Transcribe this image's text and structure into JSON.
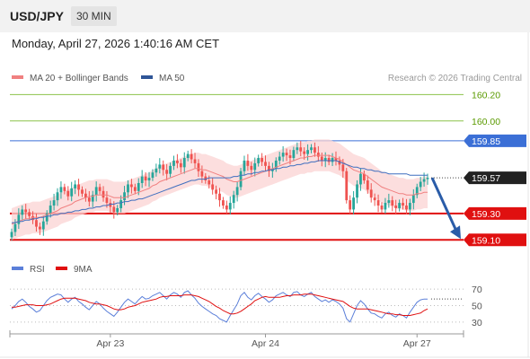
{
  "header": {
    "symbol": "USD/JPY",
    "timeframe": "30 MIN"
  },
  "datetime": "Monday, April 27, 2026 1:40:16 AM CET",
  "attribution": "Research © 2026 Trading Central",
  "colors": {
    "up": "#26a69a",
    "down": "#ef5350",
    "ma20": "#f08080",
    "band": "#fbd3d3",
    "ma50": "#3f6fbf",
    "resistance": "#3b6fd6",
    "support": "#e01010",
    "target_green": "#8bc34a",
    "arrow": "#2a5ca8",
    "rsi": "#5b7fd9",
    "rsi_ma": "#e01010"
  },
  "chart_data": [
    {
      "type": "candlestick",
      "legend": [
        {
          "name": "MA 20 + Bollinger Bands",
          "color": "#f08080"
        },
        {
          "name": "MA 50",
          "color": "#2f5597"
        }
      ],
      "legend_position": "top-left",
      "ylim": [
        159.0,
        160.25
      ],
      "x_ticks": [
        {
          "label": "Apr 23",
          "index": 28
        },
        {
          "label": "Apr 24",
          "index": 72
        },
        {
          "label": "Apr 27",
          "index": 115
        }
      ],
      "levels": [
        {
          "label": "160.20",
          "value": 160.2,
          "style": "green-line"
        },
        {
          "label": "160.00",
          "value": 160.0,
          "style": "green-line"
        },
        {
          "label": "159.85",
          "value": 159.85,
          "style": "blue-line"
        },
        {
          "label": "159.30",
          "value": 159.3,
          "style": "red-line"
        },
        {
          "label": "159.10",
          "value": 159.1,
          "style": "red-line"
        }
      ],
      "last_price": {
        "label": "159.57",
        "value": 159.57
      },
      "forecast_arrow": {
        "from": 159.57,
        "to": 159.1
      },
      "closes": [
        159.16,
        159.22,
        159.29,
        159.33,
        159.31,
        159.28,
        159.25,
        159.2,
        159.18,
        159.24,
        159.3,
        159.36,
        159.4,
        159.46,
        159.5,
        159.47,
        159.43,
        159.49,
        159.52,
        159.48,
        159.45,
        159.42,
        159.39,
        159.44,
        159.5,
        159.47,
        159.42,
        159.38,
        159.35,
        159.31,
        159.34,
        159.4,
        159.46,
        159.52,
        159.5,
        159.47,
        159.53,
        159.58,
        159.55,
        159.57,
        159.61,
        159.64,
        159.67,
        159.63,
        159.6,
        159.66,
        159.7,
        159.68,
        159.65,
        159.72,
        159.75,
        159.71,
        159.68,
        159.62,
        159.58,
        159.55,
        159.52,
        159.48,
        159.45,
        159.4,
        159.36,
        159.33,
        159.38,
        159.44,
        159.5,
        159.62,
        159.7,
        159.66,
        159.63,
        159.68,
        159.72,
        159.69,
        159.66,
        159.62,
        159.64,
        159.7,
        159.73,
        159.76,
        159.74,
        159.72,
        159.78,
        159.8,
        159.77,
        159.75,
        159.78,
        159.8,
        159.76,
        159.73,
        159.7,
        159.72,
        159.69,
        159.72,
        159.7,
        159.67,
        159.62,
        159.4,
        159.33,
        159.42,
        159.52,
        159.6,
        159.55,
        159.48,
        159.42,
        159.4,
        159.36,
        159.33,
        159.38,
        159.4,
        159.36,
        159.34,
        159.38,
        159.36,
        159.33,
        159.38,
        159.44,
        159.5,
        159.54,
        159.56,
        159.57
      ],
      "ma20": [
        159.22,
        159.23,
        159.24,
        159.25,
        159.26,
        159.26,
        159.27,
        159.27,
        159.27,
        159.28,
        159.29,
        159.3,
        159.31,
        159.32,
        159.34,
        159.35,
        159.36,
        159.37,
        159.39,
        159.4,
        159.41,
        159.42,
        159.43,
        159.43,
        159.44,
        159.44,
        159.44,
        159.44,
        159.43,
        159.42,
        159.42,
        159.42,
        159.42,
        159.43,
        159.44,
        159.45,
        159.46,
        159.47,
        159.48,
        159.49,
        159.51,
        159.52,
        159.54,
        159.55,
        159.56,
        159.57,
        159.58,
        159.59,
        159.6,
        159.61,
        159.62,
        159.63,
        159.64,
        159.64,
        159.63,
        159.63,
        159.62,
        159.61,
        159.6,
        159.59,
        159.58,
        159.56,
        159.55,
        159.54,
        159.54,
        159.55,
        159.56,
        159.57,
        159.58,
        159.59,
        159.6,
        159.61,
        159.62,
        159.63,
        159.64,
        159.65,
        159.66,
        159.67,
        159.68,
        159.69,
        159.7,
        159.71,
        159.72,
        159.72,
        159.73,
        159.73,
        159.74,
        159.74,
        159.74,
        159.74,
        159.74,
        159.73,
        159.72,
        159.71,
        159.69,
        159.67,
        159.65,
        159.63,
        159.62,
        159.61,
        159.6,
        159.58,
        159.56,
        159.54,
        159.52,
        159.5,
        159.49,
        159.48,
        159.47,
        159.46,
        159.45,
        159.45,
        159.44,
        159.44,
        159.44,
        159.45,
        159.45,
        159.46,
        159.46
      ],
      "ma50": [
        159.23,
        159.23,
        159.24,
        159.24,
        159.25,
        159.25,
        159.26,
        159.26,
        159.27,
        159.27,
        159.28,
        159.28,
        159.29,
        159.29,
        159.3,
        159.3,
        159.31,
        159.31,
        159.32,
        159.32,
        159.33,
        159.33,
        159.34,
        159.34,
        159.35,
        159.35,
        159.36,
        159.36,
        159.37,
        159.37,
        159.38,
        159.38,
        159.39,
        159.39,
        159.4,
        159.4,
        159.41,
        159.41,
        159.42,
        159.43,
        159.44,
        159.45,
        159.46,
        159.47,
        159.48,
        159.49,
        159.5,
        159.51,
        159.52,
        159.53,
        159.54,
        159.55,
        159.55,
        159.56,
        159.56,
        159.56,
        159.57,
        159.57,
        159.57,
        159.57,
        159.57,
        159.57,
        159.57,
        159.58,
        159.58,
        159.59,
        159.59,
        159.6,
        159.6,
        159.61,
        159.61,
        159.62,
        159.62,
        159.63,
        159.63,
        159.64,
        159.64,
        159.65,
        159.65,
        159.66,
        159.66,
        159.67,
        159.67,
        159.68,
        159.68,
        159.69,
        159.69,
        159.7,
        159.7,
        159.7,
        159.7,
        159.7,
        159.7,
        159.69,
        159.68,
        159.67,
        159.66,
        159.65,
        159.65,
        159.64,
        159.64,
        159.63,
        159.63,
        159.62,
        159.62,
        159.61,
        159.61,
        159.6,
        159.6,
        159.6,
        159.6,
        159.6,
        159.6,
        159.59,
        159.59,
        159.59,
        159.59,
        159.59,
        159.59
      ],
      "band_width": 0.12
    },
    {
      "type": "line",
      "legend": [
        {
          "name": "RSI",
          "color": "#5b7fd9"
        },
        {
          "name": "9MA",
          "color": "#e01010"
        }
      ],
      "ylim": [
        20,
        80
      ],
      "y_ticks": [
        70,
        50,
        30
      ],
      "rsi": [
        46,
        50,
        55,
        58,
        54,
        49,
        46,
        42,
        44,
        50,
        56,
        60,
        62,
        64,
        63,
        58,
        54,
        58,
        60,
        55,
        52,
        48,
        45,
        50,
        55,
        52,
        47,
        43,
        40,
        37,
        42,
        48,
        54,
        58,
        55,
        52,
        57,
        61,
        58,
        59,
        62,
        64,
        66,
        62,
        58,
        63,
        66,
        64,
        60,
        66,
        68,
        63,
        59,
        53,
        49,
        46,
        43,
        40,
        38,
        34,
        32,
        30,
        38,
        45,
        52,
        62,
        66,
        60,
        57,
        62,
        65,
        61,
        58,
        54,
        57,
        62,
        64,
        66,
        63,
        61,
        66,
        67,
        63,
        61,
        64,
        66,
        61,
        58,
        55,
        57,
        54,
        57,
        55,
        52,
        47,
        34,
        30,
        40,
        50,
        56,
        52,
        46,
        41,
        40,
        37,
        35,
        40,
        42,
        38,
        36,
        40,
        38,
        35,
        42,
        48,
        54,
        57,
        58,
        58
      ],
      "rsi_ma": [
        48,
        48,
        49,
        50,
        51,
        51,
        51,
        50,
        50,
        50,
        51,
        52,
        54,
        56,
        58,
        59,
        59,
        59,
        59,
        58,
        57,
        56,
        54,
        53,
        52,
        52,
        51,
        50,
        48,
        46,
        45,
        45,
        46,
        48,
        49,
        50,
        52,
        54,
        55,
        56,
        57,
        58,
        60,
        61,
        61,
        62,
        62,
        62,
        62,
        63,
        63,
        63,
        62,
        61,
        59,
        57,
        55,
        52,
        49,
        47,
        44,
        42,
        40,
        40,
        41,
        43,
        46,
        49,
        52,
        56,
        58,
        60,
        61,
        60,
        60,
        60,
        60,
        61,
        62,
        62,
        63,
        63,
        63,
        64,
        64,
        64,
        63,
        62,
        61,
        60,
        59,
        58,
        57,
        56,
        55,
        52,
        49,
        47,
        46,
        46,
        46,
        46,
        45,
        44,
        43,
        42,
        41,
        40,
        40,
        39,
        39,
        38,
        38,
        38,
        39,
        40,
        41,
        44,
        46
      ]
    }
  ]
}
